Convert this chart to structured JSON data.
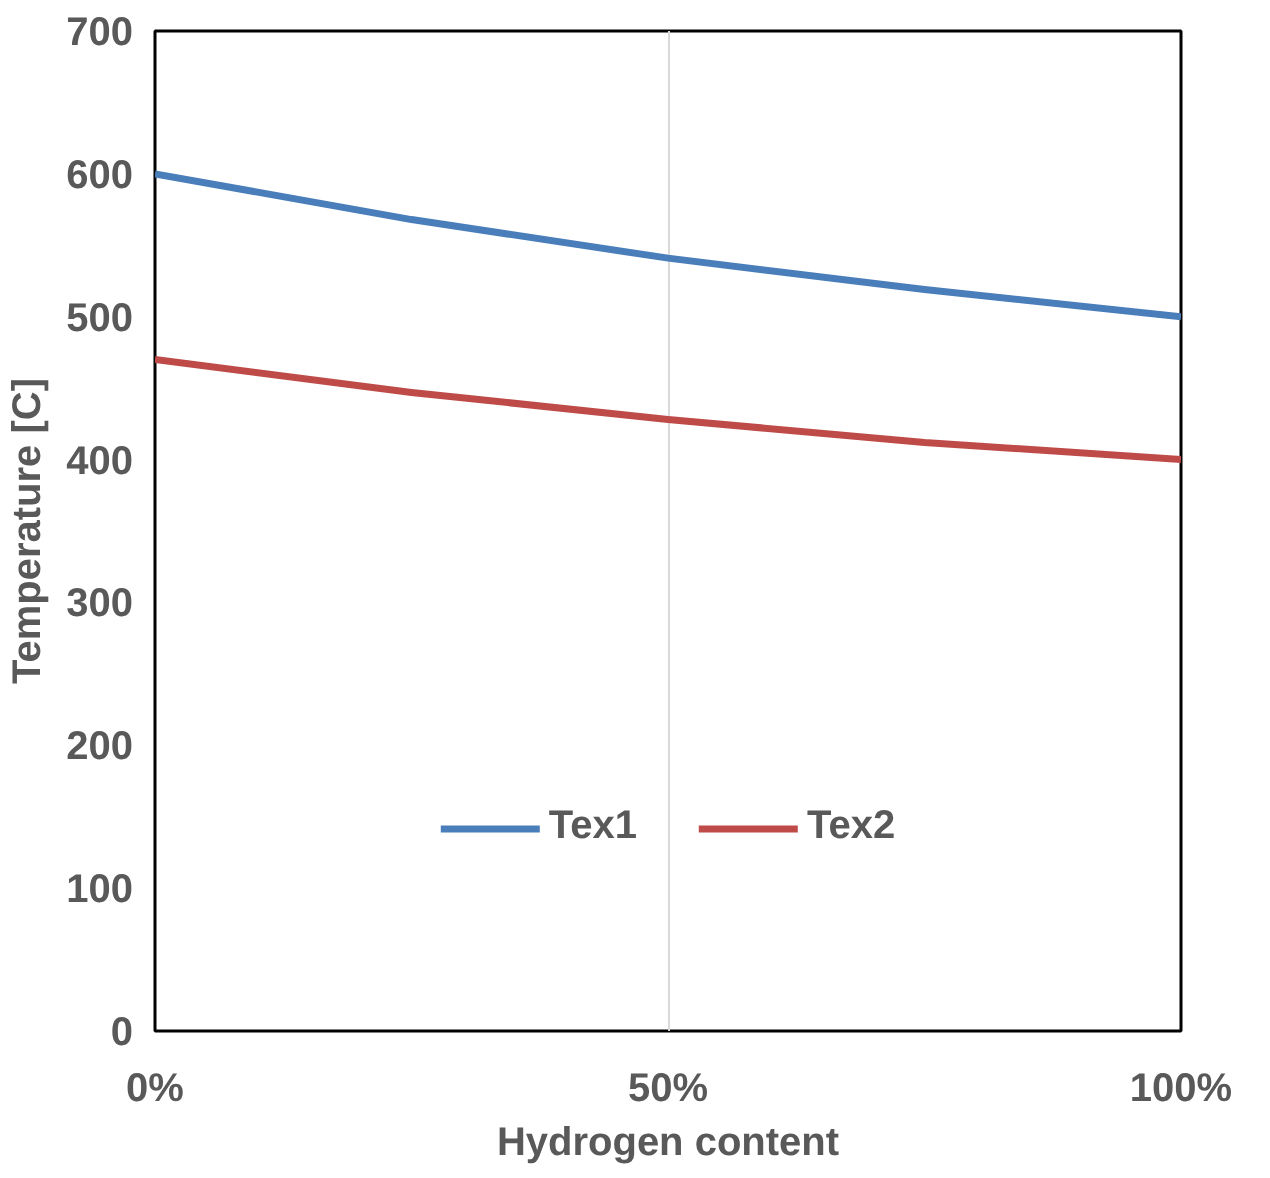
{
  "chart_data": {
    "type": "line",
    "xlabel": "Hydrogen content",
    "ylabel": "Temperature [C]",
    "x": [
      0,
      25,
      50,
      75,
      100
    ],
    "series": [
      {
        "name": "Tex1",
        "color": "#4a7ebb",
        "values": [
          600,
          568,
          541,
          519,
          500
        ]
      },
      {
        "name": "Tex2",
        "color": "#be4b48",
        "values": [
          470,
          447,
          428,
          412,
          400
        ]
      }
    ],
    "xlim": [
      0,
      100
    ],
    "ylim": [
      0,
      700
    ],
    "xticks": [
      {
        "value": 0,
        "label": "0%"
      },
      {
        "value": 50,
        "label": "50%"
      },
      {
        "value": 100,
        "label": "100%"
      }
    ],
    "yticks": [
      0,
      100,
      200,
      300,
      400,
      500,
      600,
      700
    ],
    "grid": "x",
    "legend": "bottom",
    "marker": "none",
    "line_style": "solid"
  }
}
